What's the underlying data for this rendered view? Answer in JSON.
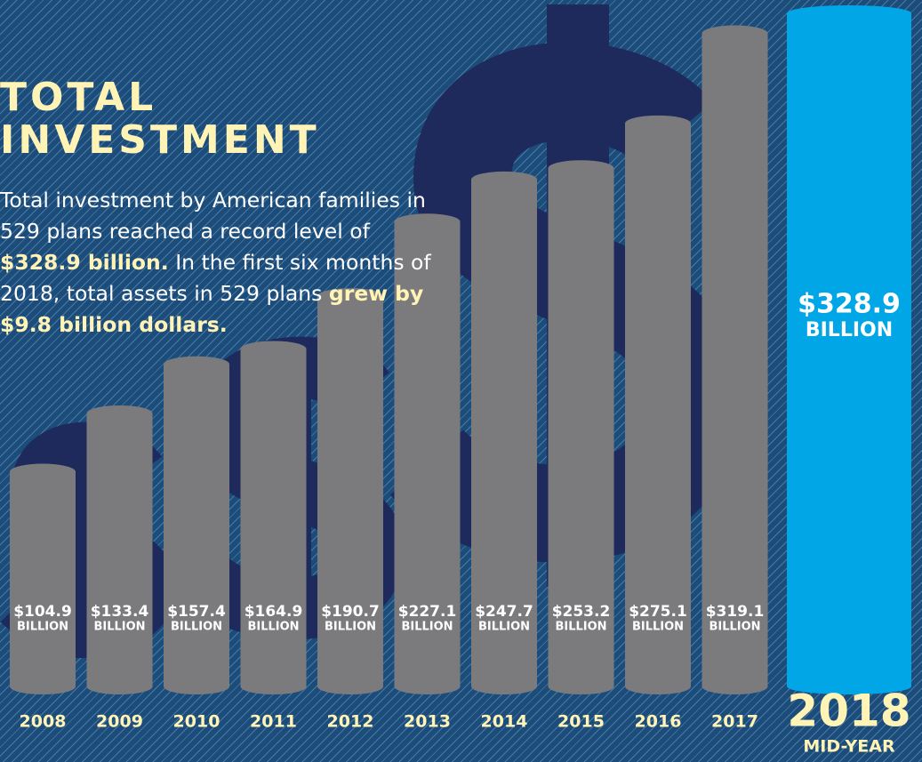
{
  "chart_data": {
    "type": "bar",
    "title_lines": [
      "TOTAL",
      "INVESTMENT"
    ],
    "text_parts": [
      "Total investment by American families in 529 plans reached a record level of ",
      "$328.9 billion.",
      " In the first six months of 2018, total assets in 529 plans ",
      "grew by $9.8 billion dollars."
    ],
    "categories": [
      "2008",
      "2009",
      "2010",
      "2011",
      "2012",
      "2013",
      "2014",
      "2015",
      "2016",
      "2017",
      "2018"
    ],
    "category_note": "MID-YEAR",
    "values": [
      104.9,
      133.4,
      157.4,
      164.9,
      190.7,
      227.1,
      247.7,
      253.2,
      275.1,
      319.1,
      328.9
    ],
    "value_labels": [
      "$104.9",
      "$133.4",
      "$157.4",
      "$164.9",
      "$190.7",
      "$227.1",
      "$247.7",
      "$253.2",
      "$275.1",
      "$319.1",
      "$328.9"
    ],
    "unit_label": "BILLION",
    "color": "#7b7b7e",
    "highlight_color": "#00a6e6"
  }
}
